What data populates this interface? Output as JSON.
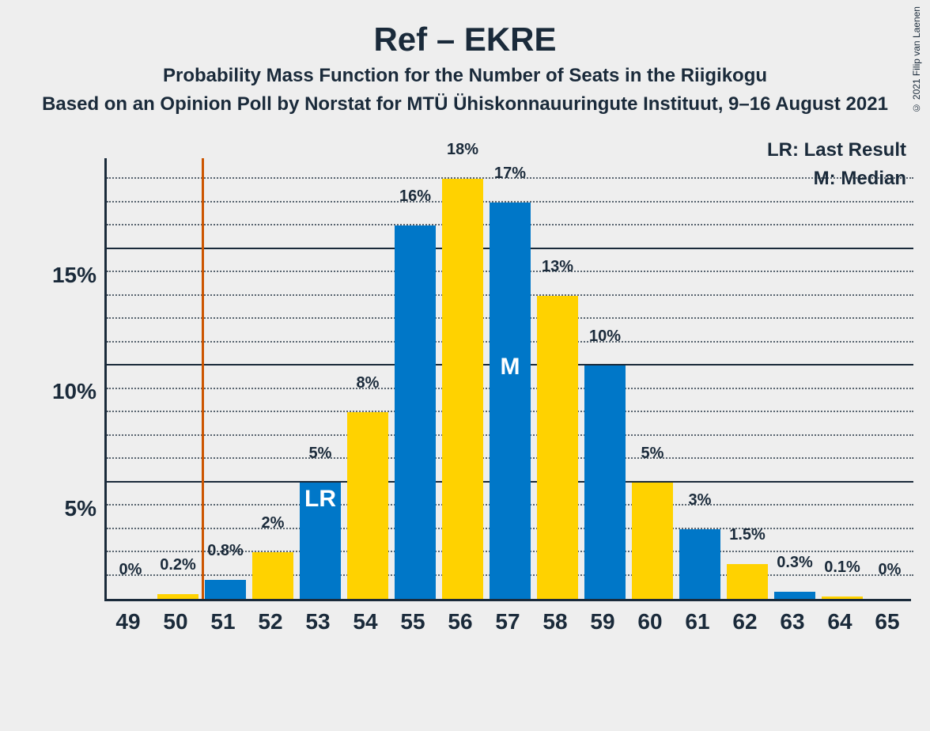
{
  "title": "Ref – EKRE",
  "subtitle": "Probability Mass Function for the Number of Seats in the Riigikogu",
  "subtitle2": "Based on an Opinion Poll by Norstat for MTÜ Ühiskonnauuringute Instituut, 9–16 August 2021",
  "copyright": "© 2021 Filip van Laenen",
  "legend_lr": "LR: Last Result",
  "legend_m": "M: Median",
  "lr_marker": "LR",
  "m_marker": "M",
  "chart": {
    "type": "bar",
    "x_values": [
      49,
      50,
      51,
      52,
      53,
      54,
      55,
      56,
      57,
      58,
      59,
      60,
      61,
      62,
      63,
      64,
      65
    ],
    "y_values": [
      0,
      0.2,
      0.8,
      2,
      5,
      8,
      16,
      18,
      17,
      13,
      10,
      5,
      3,
      1.5,
      0.3,
      0.1,
      0
    ],
    "y_labels": [
      "0%",
      "0.2%",
      "0.8%",
      "2%",
      "5%",
      "8%",
      "16%",
      "18%",
      "17%",
      "13%",
      "10%",
      "5%",
      "3%",
      "1.5%",
      "0.3%",
      "0.1%",
      "0%"
    ],
    "colors_alt": [
      "#ffd200",
      "#0077c8"
    ],
    "ylim": [
      0,
      19
    ],
    "y_major_ticks": [
      5,
      10,
      15
    ],
    "y_major_labels": [
      "5%",
      "10%",
      "15%"
    ],
    "y_minor_step": 1,
    "lr_position": 50.5,
    "lr_bar_index": 4,
    "median_bar_index": 8,
    "background_color": "#eeeeee",
    "axis_color": "#1a2a3a",
    "bar_width_ratio": 0.86,
    "lr_line_color": "#cc5500",
    "title_fontsize": 42,
    "subtitle_fontsize": 24,
    "axis_label_fontsize": 28,
    "bar_label_fontsize": 20
  }
}
